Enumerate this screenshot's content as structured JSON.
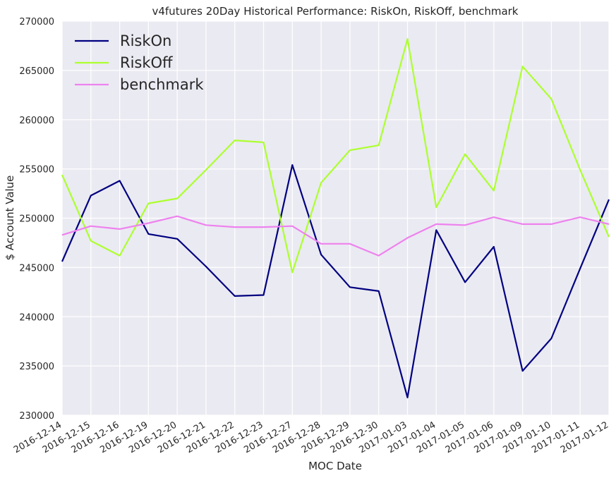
{
  "chart_data": {
    "type": "line",
    "title": "v4futures 20Day Historical Performance: RiskOn, RiskOff, benchmark",
    "xlabel": "MOC Date",
    "ylabel": "$ Account Value",
    "ylim": [
      230000,
      270000
    ],
    "yticks": [
      230000,
      235000,
      240000,
      245000,
      250000,
      255000,
      260000,
      265000,
      270000
    ],
    "ytick_labels": [
      "230000",
      "235000",
      "240000",
      "245000",
      "250000",
      "255000",
      "260000",
      "265000",
      "270000"
    ],
    "categories": [
      "2016-12-14",
      "2016-12-15",
      "2016-12-16",
      "2016-12-19",
      "2016-12-20",
      "2016-12-21",
      "2016-12-22",
      "2016-12-23",
      "2016-12-27",
      "2016-12-28",
      "2016-12-29",
      "2016-12-30",
      "2017-01-03",
      "2017-01-04",
      "2017-01-05",
      "2017-01-06",
      "2017-01-09",
      "2017-01-10",
      "2017-01-11",
      "2017-01-12"
    ],
    "grid": true,
    "legend_position": "top-left",
    "background": "#eaeaf2",
    "series": [
      {
        "name": "RiskOn",
        "color": "#000080",
        "values": [
          245600,
          252300,
          253800,
          248400,
          247900,
          245100,
          242100,
          242200,
          255400,
          246300,
          243000,
          242600,
          231800,
          248800,
          243500,
          247100,
          234500,
          237800,
          244900,
          251900
        ]
      },
      {
        "name": "RiskOff",
        "color": "#adff2f",
        "values": [
          254400,
          247700,
          246200,
          251500,
          252000,
          254900,
          257900,
          257700,
          244500,
          253600,
          256900,
          257400,
          268200,
          251100,
          256500,
          252800,
          265400,
          262100,
          254900,
          248100
        ]
      },
      {
        "name": "benchmark",
        "color": "#ee82ee",
        "values": [
          248300,
          249200,
          248900,
          249500,
          250200,
          249300,
          249100,
          249100,
          249200,
          247400,
          247400,
          246200,
          248000,
          249400,
          249300,
          250100,
          249400,
          249400,
          250100,
          249400
        ]
      }
    ]
  }
}
